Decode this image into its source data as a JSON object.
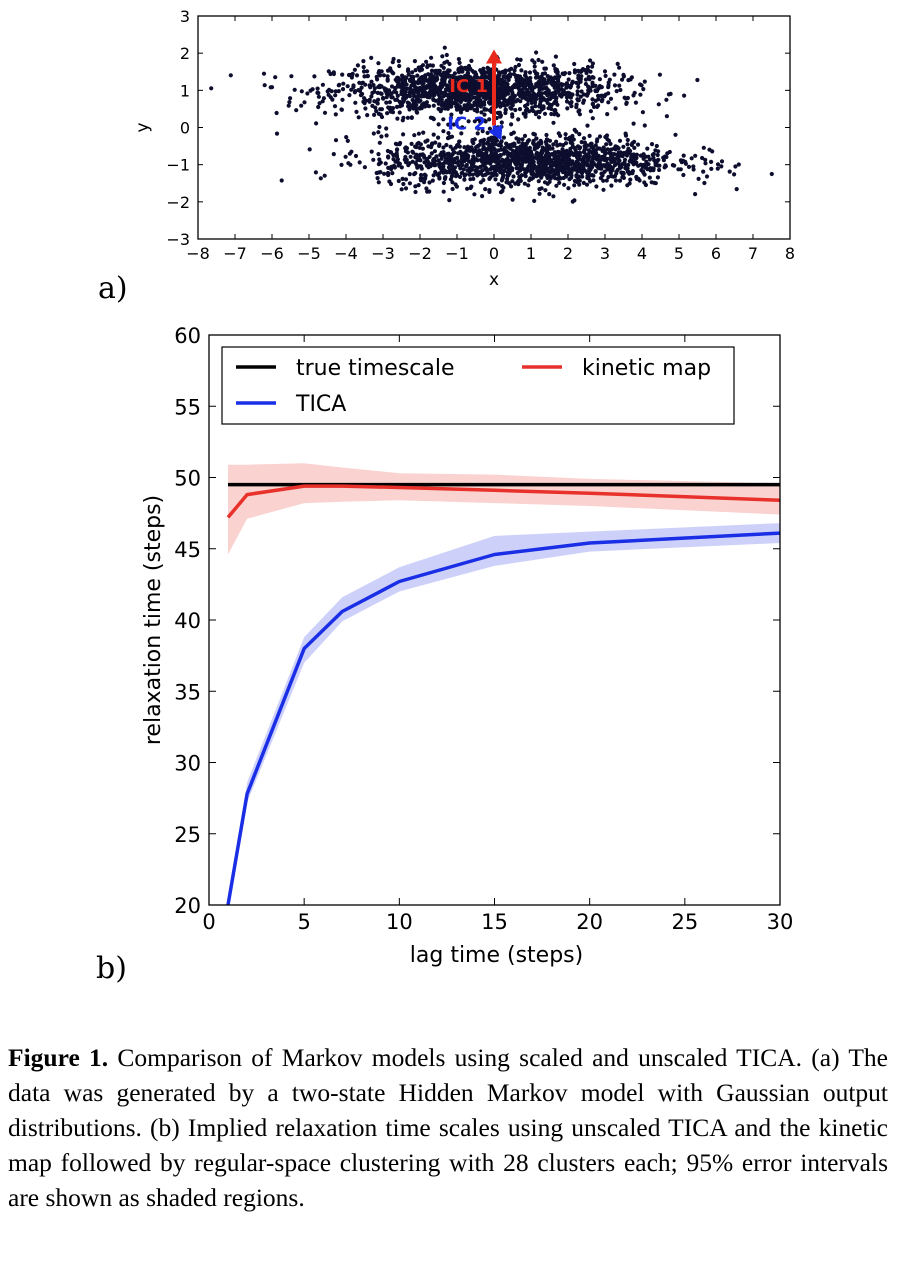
{
  "chart_data": [
    {
      "type": "scatter",
      "panel_label": "a)",
      "xlabel": "x",
      "ylabel": "y",
      "xlim": [
        -8,
        8
      ],
      "ylim": [
        -3,
        3
      ],
      "xticks": [
        "−8",
        "−7",
        "−6",
        "−5",
        "−4",
        "−3",
        "−2",
        "−1",
        "0",
        "1",
        "2",
        "3",
        "4",
        "5",
        "6",
        "7",
        "8"
      ],
      "yticks": [
        "−3",
        "−2",
        "−1",
        "0",
        "1",
        "2",
        "3"
      ],
      "clusters": [
        {
          "center": [
            -0.5,
            1.0
          ],
          "sd": [
            1.9,
            0.35
          ],
          "count": 1500
        },
        {
          "center": [
            0.9,
            -0.9
          ],
          "sd": [
            2.0,
            0.35
          ],
          "count": 1500
        }
      ],
      "point_color": "#0d0d2e",
      "arrows": [
        {
          "label": "IC 1",
          "from": [
            0,
            0.05
          ],
          "to": [
            0,
            2.1
          ],
          "color": "#e8291c"
        },
        {
          "label": "IC 2",
          "from": [
            0,
            0.05
          ],
          "to": [
            0.2,
            -0.35
          ],
          "color": "#1a2ee6"
        }
      ]
    },
    {
      "type": "line",
      "panel_label": "b)",
      "xlabel": "lag time (steps)",
      "ylabel": "relaxation time (steps)",
      "xlim": [
        0,
        30
      ],
      "ylim": [
        20,
        60
      ],
      "xticks": [
        "0",
        "5",
        "10",
        "15",
        "20",
        "25",
        "30"
      ],
      "yticks": [
        "20",
        "25",
        "30",
        "35",
        "40",
        "45",
        "50",
        "55",
        "60"
      ],
      "legend_position": "top",
      "series": [
        {
          "name": "true timescale",
          "color": "#000000",
          "x": [
            1,
            30
          ],
          "y": [
            49.5,
            49.5
          ]
        },
        {
          "name": "kinetic map",
          "color": "#e8312a",
          "x": [
            1,
            2,
            5,
            7,
            10,
            15,
            20,
            30
          ],
          "y": [
            47.2,
            48.8,
            49.4,
            49.4,
            49.3,
            49.1,
            48.9,
            48.4
          ],
          "lower": [
            44.6,
            47.1,
            48.2,
            48.3,
            48.4,
            48.2,
            48.0,
            47.4
          ],
          "upper": [
            50.9,
            50.9,
            51.0,
            50.7,
            50.3,
            50.2,
            49.9,
            49.6
          ]
        },
        {
          "name": "TICA",
          "color": "#1a2ee6",
          "x": [
            1,
            2,
            5,
            7,
            10,
            15,
            20,
            30
          ],
          "y": [
            20.0,
            27.8,
            38.0,
            40.6,
            42.7,
            44.6,
            45.4,
            46.1
          ],
          "lower": [
            20.0,
            27.2,
            37.0,
            39.9,
            42.0,
            43.8,
            44.8,
            45.4
          ],
          "upper": [
            20.3,
            28.6,
            38.8,
            41.6,
            43.7,
            45.9,
            46.2,
            46.8
          ]
        }
      ]
    }
  ],
  "caption": {
    "label": "Figure 1.",
    "text": " Comparison of Markov models using scaled and unscaled TICA. (a) The data was generated by a two-state Hidden Markov model with Gaussian output distributions. (b) Implied relaxation time scales using unscaled TICA and the kinetic map followed by regular-space clustering with 28 clusters each; 95% error intervals are shown as shaded regions."
  }
}
